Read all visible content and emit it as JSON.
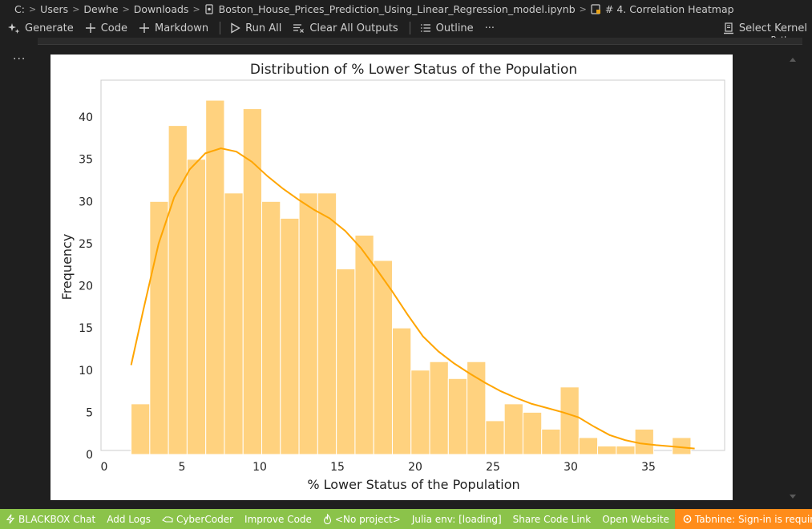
{
  "breadcrumb": {
    "items": [
      "C:",
      "Users",
      "Dewhe",
      "Downloads",
      "Boston_House_Prices_Prediction_Using_Linear_Regression_model.ipynb",
      "# 4. Correlation Heatmap"
    ]
  },
  "toolbar": {
    "generate": "Generate",
    "code": "Code",
    "markdown": "Markdown",
    "run_all": "Run All",
    "clear_outputs": "Clear All Outputs",
    "outline": "Outline",
    "more": "···",
    "select_kernel": "Select Kernel",
    "kernel_sub": "Python"
  },
  "cell": {
    "more": "···"
  },
  "statusbar": {
    "blackbox_chat": "BLACKBOX Chat",
    "add_logs": "Add Logs",
    "cybercoder": "CyberCoder",
    "improve_code": "Improve Code",
    "no_project": "<No project>",
    "julia_env": "Julia env: [loading]",
    "share_code_link": "Share Code Link",
    "open_website": "Open Website",
    "tabnine": "Tabnine: Sign-in is required"
  },
  "colors": {
    "bar_fill": "#ffd27f",
    "kde_line": "#ffa500",
    "statusbar": "#8bc34a",
    "tabnine": "#ff8c1a"
  },
  "chart_data": {
    "type": "bar",
    "title": "Distribution of % Lower Status of the Population",
    "xlabel": "% Lower Status of the Population",
    "ylabel": "Frequency",
    "xlim": [
      0,
      40
    ],
    "ylim": [
      0,
      44
    ],
    "xticks": [
      0,
      5,
      10,
      15,
      20,
      25,
      30,
      35
    ],
    "yticks": [
      0,
      5,
      10,
      15,
      20,
      25,
      30,
      35,
      40
    ],
    "bins_start": 1.73,
    "bin_width": 1.2,
    "values": [
      6,
      30,
      39,
      35,
      42,
      31,
      41,
      30,
      28,
      31,
      31,
      22,
      26,
      23,
      15,
      10,
      11,
      9,
      11,
      4,
      6,
      5,
      3,
      8,
      2,
      1,
      1,
      3,
      0,
      2
    ],
    "kde": {
      "x": [
        1.73,
        2.5,
        3.5,
        4.5,
        5.5,
        6.5,
        7.5,
        8.5,
        9.5,
        10.5,
        11.5,
        12.5,
        13.5,
        14.5,
        15.5,
        16.5,
        17.5,
        18.5,
        19.5,
        20.5,
        21.5,
        22.5,
        23.5,
        24.5,
        25.5,
        26.5,
        27.5,
        28.5,
        29.5,
        30.5,
        31.5,
        32.5,
        33.5,
        34.5,
        35.5,
        36.5,
        37.97
      ],
      "y": [
        10.6,
        17,
        25,
        30.5,
        33.8,
        35.7,
        36.3,
        35.9,
        34.7,
        33,
        31.5,
        30.2,
        29,
        28,
        26.5,
        24.5,
        22,
        19.4,
        16.6,
        14,
        12.2,
        10.8,
        9.6,
        8.5,
        7.5,
        6.7,
        6,
        5.5,
        5,
        4.4,
        3.3,
        2.3,
        1.7,
        1.3,
        1.1,
        0.95,
        0.7
      ]
    }
  }
}
